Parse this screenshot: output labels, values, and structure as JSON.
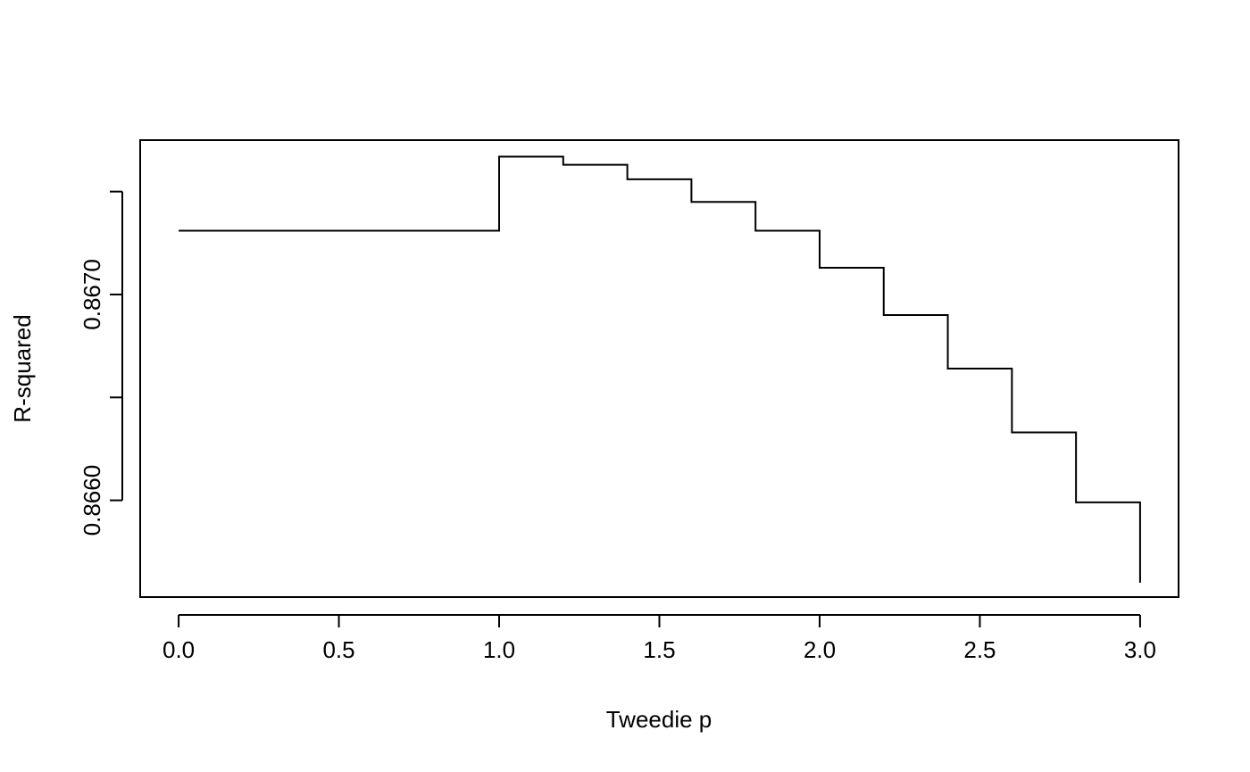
{
  "chart_data": {
    "type": "line",
    "step": true,
    "title": "",
    "xlabel": "Tweedie p",
    "ylabel": "R-squared",
    "xlim": [
      -0.12,
      3.12
    ],
    "ylim": [
      0.86553,
      0.86775
    ],
    "x_ticks": [
      0.0,
      0.5,
      1.0,
      1.5,
      2.0,
      2.5,
      3.0
    ],
    "x_tick_labels": [
      "0.0",
      "0.5",
      "1.0",
      "1.5",
      "2.0",
      "2.5",
      "3.0"
    ],
    "y_ticks": [
      0.866,
      0.8665,
      0.867,
      0.8675
    ],
    "y_tick_labels": [
      "0.8660",
      "",
      "0.8670",
      ""
    ],
    "grid": false,
    "series": [
      {
        "x": [
          0.0,
          1.0,
          1.2,
          1.4,
          1.6,
          1.8,
          2.0,
          2.2,
          2.4,
          2.6,
          2.8,
          3.0
        ],
        "y": [
          0.86731,
          0.86767,
          0.86763,
          0.86756,
          0.86745,
          0.86731,
          0.86713,
          0.8669,
          0.86664,
          0.86633,
          0.86599,
          0.8656
        ]
      }
    ]
  }
}
